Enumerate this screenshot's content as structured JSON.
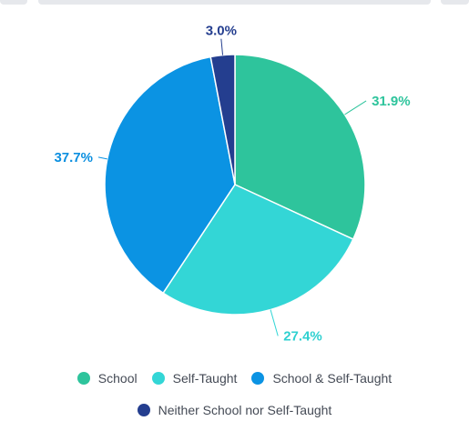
{
  "chart_data": {
    "type": "pie",
    "categories": [
      "School",
      "Self-Taught",
      "School & Self-Taught",
      "Neither School nor Self-Taught"
    ],
    "values": [
      31.9,
      27.4,
      37.7,
      3.0
    ],
    "labels": [
      "31.9%",
      "27.4%",
      "37.7%",
      "3.0%"
    ],
    "colors": [
      "#2ec49c",
      "#33d6d6",
      "#0b93e3",
      "#243e8f"
    ],
    "label_colors": [
      "#2ec49c",
      "#2ed0d0",
      "#0b8fe0",
      "#243e8f"
    ],
    "legend_placement": "bottom"
  }
}
